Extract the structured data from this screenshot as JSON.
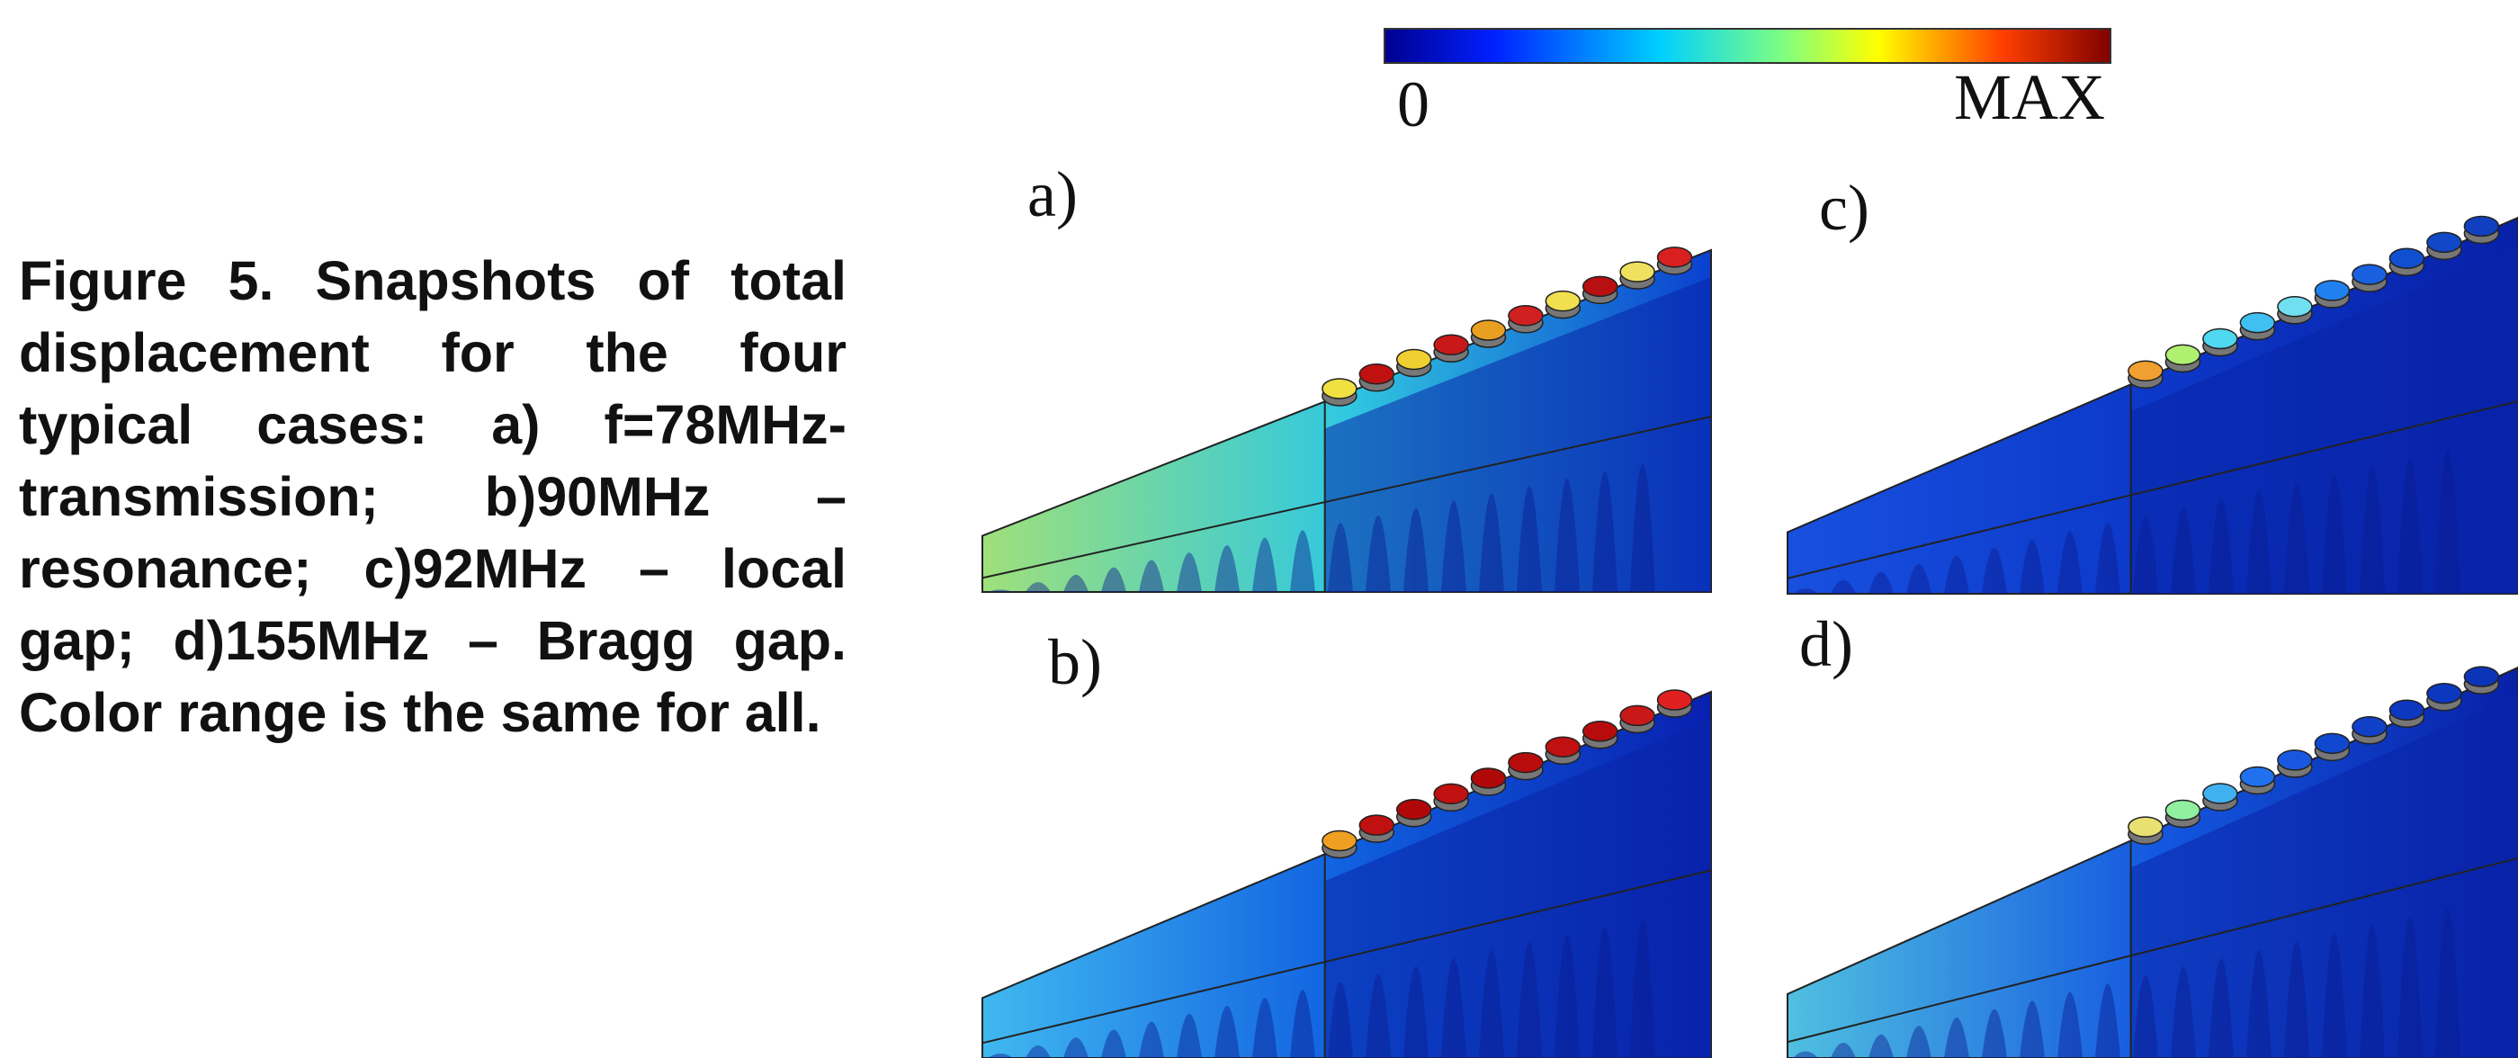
{
  "caption": "Figure 5. Snapshots of total displacement for the four typical cases: a) f=78MHz-transmission; b)90MHz – resonance; c)92MHz – local gap; d)155MHz – Bragg gap. Color range is the same for all.",
  "colorbar": {
    "min_label": "0",
    "max_label": "MAX"
  },
  "panels": [
    {
      "label": "a)"
    },
    {
      "label": "b)"
    },
    {
      "label": "c)"
    },
    {
      "label": "d)"
    }
  ]
}
